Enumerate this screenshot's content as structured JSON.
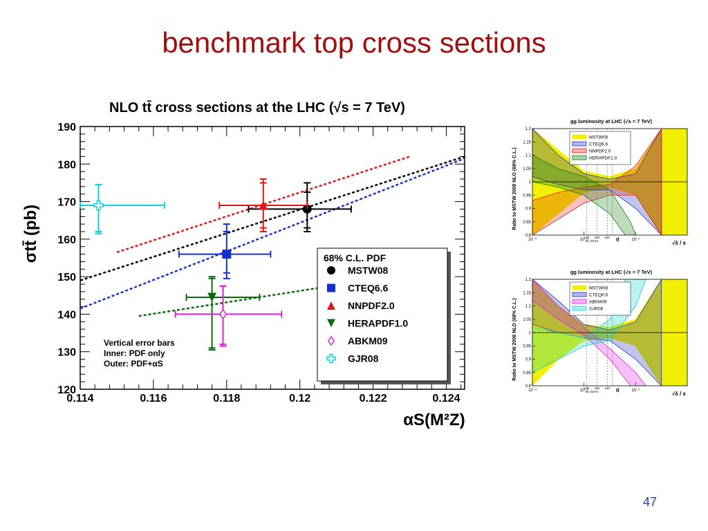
{
  "slide": {
    "title": "benchmark top cross sections",
    "page_number": "47"
  },
  "chart_data": [
    {
      "type": "scatter",
      "title": "NLO tt̄ cross sections at the LHC (√s = 7 TeV)",
      "xlabel": "αS(M²Z)",
      "ylabel": "σtt̄ (pb)",
      "xlim": [
        0.114,
        0.1245
      ],
      "ylim": [
        120,
        190
      ],
      "xticks": [
        "0.114",
        "0.116",
        "0.118",
        "0.12",
        "0.122",
        "0.124"
      ],
      "yticks": [
        "120",
        "130",
        "140",
        "150",
        "160",
        "170",
        "180",
        "190"
      ],
      "grid": false,
      "legend": {
        "title": "68% C.L. PDF",
        "placement": "bottom-right"
      },
      "note_lines": [
        "Vertical error bars",
        "Inner: PDF only",
        "Outer: PDF+αS"
      ],
      "series": [
        {
          "name": "MSTW08",
          "color": "#000000",
          "marker": "circle",
          "point": {
            "x": 0.1202,
            "y": 168,
            "x_err": [
              0.1186,
              0.1214
            ],
            "y_inner": [
              163,
              172.5
            ],
            "y_outer": [
              162,
              175
            ]
          },
          "trend": [
            [
              0.114,
              149
            ],
            [
              0.1245,
              182
            ]
          ]
        },
        {
          "name": "CTEQ6.6",
          "color": "#1530d0",
          "marker": "square",
          "point": {
            "x": 0.118,
            "y": 156,
            "x_err": [
              0.1167,
              0.1192
            ],
            "y_inner": [
              151,
              162
            ],
            "y_outer": [
              149.5,
              164
            ]
          },
          "trend": [
            [
              0.114,
              141.5
            ],
            [
              0.1245,
              181.5
            ]
          ]
        },
        {
          "name": "NNPDF2.0",
          "color": "#e01515",
          "marker": "triangle-up",
          "point": {
            "x": 0.119,
            "y": 169,
            "x_err": [
              0.1178,
              0.1202
            ],
            "y_inner": [
              163,
              175
            ],
            "y_outer": [
              162,
              176
            ]
          },
          "trend": [
            [
              0.115,
              156.5
            ],
            [
              0.123,
              182
            ]
          ]
        },
        {
          "name": "HERAPDF1.0",
          "color": "#0b6b0b",
          "marker": "triangle-down",
          "point": {
            "x": 0.1176,
            "y": 144.5,
            "x_err": [
              0.1169,
              0.1189
            ],
            "y_inner": [
              131,
              149.5
            ],
            "y_outer": [
              130.5,
              150
            ]
          },
          "trend": [
            [
              0.1156,
              139.5
            ],
            [
              0.1215,
              148.5
            ]
          ]
        },
        {
          "name": "ABKM09",
          "color": "#e020e0",
          "marker": "diamond-open",
          "point": {
            "x": 0.1179,
            "y": 140,
            "x_err": [
              0.1166,
              0.1195
            ],
            "y_inner": [
              132,
              147.5
            ],
            "y_outer": [
              131.5,
              147.5
            ]
          }
        },
        {
          "name": "GJR08",
          "color": "#10d0e0",
          "marker": "cross-open",
          "point": {
            "x": 0.1145,
            "y": 169,
            "x_err": [
              0.114,
              0.1163
            ],
            "y_inner": [
              162,
              174.5
            ],
            "y_outer": [
              161.5,
              174.5
            ]
          }
        }
      ]
    },
    {
      "type": "line",
      "title": "gg luminosity at LHC (√s = 7 TeV)",
      "ylabel": "Ratio to MSTW 2008 NLO (68% C.L.)",
      "xlabel": "√ŝ / s",
      "xscale": "log",
      "xlim": [
        0.001,
        1
      ],
      "ylim": [
        0.8,
        1.2
      ],
      "xticks": [
        "10⁻³",
        "10⁻²",
        "10⁻¹"
      ],
      "yticks": [
        "0.8",
        "0.85",
        "0.9",
        "0.95",
        "1",
        "1.05",
        "1.1",
        "1.15",
        "1.2"
      ],
      "marker_labels": [
        "120",
        "180",
        "240",
        "Mₕ (GeV)",
        "tt̄"
      ],
      "legend": {
        "placement": "top-left",
        "entries": [
          "MSTW08",
          "CTEQ6.6",
          "NNPDF2.0",
          "HERAPDF1.0"
        ]
      },
      "series": [
        {
          "name": "MSTW08",
          "color": "#f0f000",
          "upper": [
            [
              -3,
              1.2
            ],
            [
              -2.5,
              1.12
            ],
            [
              -2,
              1.04
            ],
            [
              -1.5,
              1.02
            ],
            [
              -1,
              1.05
            ],
            [
              -0.5,
              1.2
            ],
            [
              0,
              1.2
            ]
          ],
          "lower": [
            [
              -3,
              0.8
            ],
            [
              -2.5,
              0.88
            ],
            [
              -2,
              0.96
            ],
            [
              -1.5,
              0.98
            ],
            [
              -1,
              0.95
            ],
            [
              -0.5,
              0.8
            ],
            [
              0,
              0.8
            ]
          ]
        },
        {
          "name": "CTEQ6.6",
          "color": "#2030c0",
          "upper": [
            [
              -3,
              1.2
            ],
            [
              -2.5,
              1.1
            ],
            [
              -2,
              1.03
            ],
            [
              -1.5,
              1.01
            ],
            [
              -1,
              1.03
            ],
            [
              -0.5,
              1.2
            ]
          ],
          "lower": [
            [
              -3,
              1.02
            ],
            [
              -2.5,
              0.99
            ],
            [
              -2,
              0.97
            ],
            [
              -1.5,
              0.97
            ],
            [
              -1,
              0.9
            ],
            [
              -0.5,
              0.8
            ]
          ]
        },
        {
          "name": "NNPDF2.0",
          "color": "#e02020",
          "upper": [
            [
              -3,
              0.93
            ],
            [
              -2.5,
              0.96
            ],
            [
              -2,
              0.98
            ],
            [
              -1.5,
              0.99
            ],
            [
              -1,
              1.06
            ],
            [
              -0.5,
              1.2
            ]
          ],
          "lower": [
            [
              -3,
              0.8
            ],
            [
              -2.5,
              0.86
            ],
            [
              -2,
              0.92
            ],
            [
              -1.5,
              0.95
            ],
            [
              -1,
              0.95
            ],
            [
              -0.5,
              0.8
            ]
          ]
        },
        {
          "name": "HERAPDF1.0",
          "color": "#108010",
          "upper": [
            [
              -3,
              1.1
            ],
            [
              -2.5,
              1.05
            ],
            [
              -2,
              1.02
            ],
            [
              -1.5,
              0.97
            ],
            [
              -1.1,
              0.85
            ],
            [
              -1,
              0.8
            ]
          ],
          "lower": [
            [
              -3,
              1.0
            ],
            [
              -2.5,
              0.98
            ],
            [
              -2,
              0.95
            ],
            [
              -1.5,
              0.88
            ],
            [
              -1.2,
              0.8
            ]
          ]
        }
      ]
    },
    {
      "type": "line",
      "title": "gg luminosity at LHC (√s = 7 TeV)",
      "ylabel": "Ratio to MSTW 2008 NLO (68% C.L.)",
      "xlabel": "√ŝ / s",
      "xscale": "log",
      "xlim": [
        0.001,
        1
      ],
      "ylim": [
        0.8,
        1.2
      ],
      "xticks": [
        "10⁻³",
        "10⁻²",
        "10⁻¹"
      ],
      "yticks": [
        "0.8",
        "0.85",
        "0.9",
        "0.95",
        "1",
        "1.05",
        "1.1",
        "1.15",
        "1.2"
      ],
      "marker_labels": [
        "120",
        "180",
        "240",
        "Mₕ (GeV)",
        "tt̄"
      ],
      "legend": {
        "placement": "top-left",
        "entries": [
          "MSTW08",
          "CTEQ6.6",
          "ABKM09",
          "GJR08"
        ]
      },
      "series": [
        {
          "name": "MSTW08",
          "color": "#f0f000",
          "upper": [
            [
              -3,
              1.2
            ],
            [
              -2.5,
              1.1
            ],
            [
              -2,
              1.03
            ],
            [
              -1.5,
              1.02
            ],
            [
              -1,
              1.05
            ],
            [
              -0.5,
              1.2
            ],
            [
              0,
              1.2
            ]
          ],
          "lower": [
            [
              -3,
              0.8
            ],
            [
              -2.5,
              0.9
            ],
            [
              -2,
              0.97
            ],
            [
              -1.5,
              0.98
            ],
            [
              -1,
              0.95
            ],
            [
              -0.5,
              0.8
            ],
            [
              0,
              0.8
            ]
          ]
        },
        {
          "name": "CTEQ6.6",
          "color": "#2030c0",
          "upper": [
            [
              -3,
              1.2
            ],
            [
              -2.5,
              1.12
            ],
            [
              -2,
              1.03
            ],
            [
              -1.5,
              1.01
            ],
            [
              -1,
              1.04
            ],
            [
              -0.5,
              1.2
            ]
          ],
          "lower": [
            [
              -3,
              1.03
            ],
            [
              -2.5,
              1.0
            ],
            [
              -2,
              0.98
            ],
            [
              -1.5,
              0.97
            ],
            [
              -1,
              0.9
            ],
            [
              -0.5,
              0.8
            ]
          ]
        },
        {
          "name": "ABKM09",
          "color": "#e020e0",
          "upper": [
            [
              -3,
              1.2
            ],
            [
              -2.5,
              1.1
            ],
            [
              -2,
              1.02
            ],
            [
              -1.5,
              0.94
            ],
            [
              -1,
              0.85
            ],
            [
              -0.8,
              0.8
            ]
          ],
          "lower": [
            [
              -3,
              1.12
            ],
            [
              -2.5,
              1.05
            ],
            [
              -2,
              0.99
            ],
            [
              -1.5,
              0.9
            ],
            [
              -1.1,
              0.8
            ]
          ]
        },
        {
          "name": "GJR08",
          "color": "#10d0d0",
          "upper": [
            [
              -3,
              1.02
            ],
            [
              -2.5,
              1.0
            ],
            [
              -2,
              0.98
            ],
            [
              -1.5,
              1.05
            ],
            [
              -1.2,
              1.2
            ]
          ],
          "lower": [
            [
              -3,
              0.85
            ],
            [
              -2.5,
              0.9
            ],
            [
              -2,
              0.95
            ],
            [
              -1.5,
              0.97
            ],
            [
              -1,
              1.1
            ],
            [
              -0.8,
              1.2
            ]
          ]
        }
      ]
    }
  ]
}
